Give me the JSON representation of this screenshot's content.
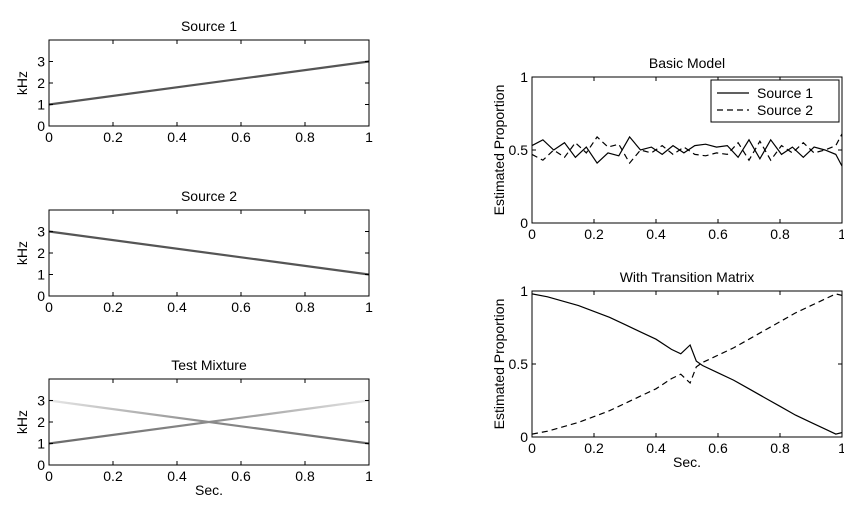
{
  "chart_data": [
    {
      "type": "line",
      "title": "Source 1",
      "xlabel": "",
      "ylabel": "kHz",
      "xlim": [
        0,
        1
      ],
      "ylim": [
        0,
        4
      ],
      "xticks": [
        "0",
        "0.2",
        "0.4",
        "0.6",
        "0.8",
        "1"
      ],
      "yticks": [
        "0",
        "1",
        "2",
        "3"
      ],
      "series": [
        {
          "x": [
            0,
            1
          ],
          "y": [
            1,
            3
          ],
          "style": "gray"
        }
      ]
    },
    {
      "type": "line",
      "title": "Source 2",
      "xlabel": "",
      "ylabel": "kHz",
      "xlim": [
        0,
        1
      ],
      "ylim": [
        0,
        4
      ],
      "xticks": [
        "0",
        "0.2",
        "0.4",
        "0.6",
        "0.8",
        "1"
      ],
      "yticks": [
        "0",
        "1",
        "2",
        "3"
      ],
      "series": [
        {
          "x": [
            0,
            1
          ],
          "y": [
            3,
            1
          ],
          "style": "gray"
        }
      ]
    },
    {
      "type": "line",
      "title": "Test Mixture",
      "xlabel": "Sec.",
      "ylabel": "kHz",
      "xlim": [
        0,
        1
      ],
      "ylim": [
        0,
        4
      ],
      "xticks": [
        "0",
        "0.2",
        "0.4",
        "0.6",
        "0.8",
        "1"
      ],
      "yticks": [
        "0",
        "1",
        "2",
        "3"
      ],
      "series": [
        {
          "x": [
            0,
            1
          ],
          "y": [
            1,
            3
          ],
          "style": "gradient-up"
        },
        {
          "x": [
            0,
            1
          ],
          "y": [
            3,
            1
          ],
          "style": "gradient-down"
        }
      ]
    },
    {
      "type": "line",
      "title": "Basic Model",
      "xlabel": "",
      "ylabel": "Estimated Proportion",
      "xlim": [
        0,
        1
      ],
      "ylim": [
        0,
        1
      ],
      "xticks": [
        "0",
        "0.2",
        "0.4",
        "0.6",
        "0.8",
        "1"
      ],
      "yticks": [
        "0",
        "0.5",
        "1"
      ],
      "legend": "top-right",
      "series": [
        {
          "name": "Source 1",
          "dash": "solid",
          "x": [
            0,
            0.035,
            0.07,
            0.105,
            0.14,
            0.175,
            0.21,
            0.245,
            0.28,
            0.315,
            0.35,
            0.385,
            0.42,
            0.455,
            0.49,
            0.525,
            0.56,
            0.595,
            0.63,
            0.665,
            0.7,
            0.735,
            0.77,
            0.805,
            0.84,
            0.875,
            0.91,
            0.945,
            0.98,
            1
          ],
          "y": [
            0.53,
            0.57,
            0.5,
            0.55,
            0.45,
            0.52,
            0.41,
            0.48,
            0.46,
            0.59,
            0.5,
            0.52,
            0.47,
            0.53,
            0.48,
            0.53,
            0.54,
            0.52,
            0.53,
            0.45,
            0.57,
            0.44,
            0.57,
            0.47,
            0.52,
            0.45,
            0.52,
            0.5,
            0.47,
            0.39
          ]
        },
        {
          "name": "Source 2",
          "dash": "dashed",
          "x": [
            0,
            0.035,
            0.07,
            0.105,
            0.14,
            0.175,
            0.21,
            0.245,
            0.28,
            0.315,
            0.35,
            0.385,
            0.42,
            0.455,
            0.49,
            0.525,
            0.56,
            0.595,
            0.63,
            0.665,
            0.7,
            0.735,
            0.77,
            0.805,
            0.84,
            0.875,
            0.91,
            0.945,
            0.98,
            1
          ],
          "y": [
            0.47,
            0.43,
            0.5,
            0.45,
            0.55,
            0.48,
            0.59,
            0.52,
            0.54,
            0.41,
            0.5,
            0.48,
            0.53,
            0.47,
            0.52,
            0.47,
            0.46,
            0.48,
            0.47,
            0.55,
            0.43,
            0.56,
            0.43,
            0.53,
            0.48,
            0.55,
            0.48,
            0.5,
            0.53,
            0.61
          ]
        }
      ]
    },
    {
      "type": "line",
      "title": "With Transition Matrix",
      "xlabel": "Sec.",
      "ylabel": "Estimated Proportion",
      "xlim": [
        0,
        1
      ],
      "ylim": [
        0,
        1
      ],
      "xticks": [
        "0",
        "0.2",
        "0.4",
        "0.6",
        "0.8",
        "1"
      ],
      "yticks": [
        "0",
        "0.5",
        "1"
      ],
      "series": [
        {
          "name": "Source 1",
          "dash": "solid",
          "x": [
            0,
            0.05,
            0.1,
            0.15,
            0.2,
            0.25,
            0.3,
            0.35,
            0.4,
            0.45,
            0.48,
            0.51,
            0.53,
            0.55,
            0.6,
            0.65,
            0.7,
            0.75,
            0.8,
            0.85,
            0.9,
            0.95,
            0.98,
            1
          ],
          "y": [
            0.98,
            0.96,
            0.93,
            0.9,
            0.86,
            0.82,
            0.77,
            0.72,
            0.67,
            0.6,
            0.57,
            0.63,
            0.52,
            0.49,
            0.44,
            0.39,
            0.33,
            0.27,
            0.21,
            0.15,
            0.1,
            0.05,
            0.02,
            0.03
          ]
        },
        {
          "name": "Source 2",
          "dash": "dashed",
          "x": [
            0,
            0.05,
            0.1,
            0.15,
            0.2,
            0.25,
            0.3,
            0.35,
            0.4,
            0.45,
            0.48,
            0.51,
            0.53,
            0.55,
            0.6,
            0.65,
            0.7,
            0.75,
            0.8,
            0.85,
            0.9,
            0.95,
            0.98,
            1
          ],
          "y": [
            0.02,
            0.04,
            0.07,
            0.1,
            0.14,
            0.18,
            0.23,
            0.28,
            0.33,
            0.4,
            0.43,
            0.37,
            0.48,
            0.51,
            0.56,
            0.61,
            0.67,
            0.73,
            0.79,
            0.85,
            0.9,
            0.95,
            0.98,
            0.97
          ]
        }
      ]
    }
  ]
}
